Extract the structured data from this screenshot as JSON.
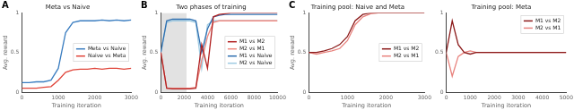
{
  "chart_data": [
    {
      "type": "line",
      "panel": "A",
      "title": "Meta vs Naive",
      "x_label": "Training iteration",
      "y_label": "Avg. reward",
      "x": [
        0,
        200,
        400,
        600,
        800,
        1000,
        1200,
        1400,
        1600,
        1800,
        2000,
        2200,
        2400,
        2600,
        2800,
        3000
      ],
      "series": [
        {
          "name": "Meta vs Naive",
          "color": "#3a7dc0",
          "values": [
            0.12,
            0.12,
            0.13,
            0.13,
            0.15,
            0.3,
            0.75,
            0.88,
            0.9,
            0.9,
            0.9,
            0.91,
            0.9,
            0.91,
            0.9,
            0.91
          ]
        },
        {
          "name": "Naive vs Meta",
          "color": "#e0453a",
          "values": [
            0.05,
            0.05,
            0.05,
            0.06,
            0.07,
            0.15,
            0.25,
            0.28,
            0.29,
            0.29,
            0.3,
            0.29,
            0.3,
            0.3,
            0.29,
            0.3
          ]
        }
      ],
      "xlim": [
        0,
        3000
      ],
      "xticks": [
        0,
        1000,
        2000,
        3000
      ],
      "ylim": [
        0,
        1
      ],
      "yticks": [
        0,
        0.5,
        1
      ],
      "grid": false,
      "legend": "center right"
    },
    {
      "type": "line",
      "panel": "B",
      "title": "Two phases of training",
      "x_label": "Training iteration",
      "y_label": "Avg. reward",
      "x": [
        0,
        500,
        1000,
        1500,
        2000,
        2500,
        3000,
        3500,
        4000,
        4500,
        5000,
        5500,
        6000,
        6500,
        7000,
        7500,
        8000,
        8500,
        9000,
        9500,
        10000
      ],
      "series": [
        {
          "name": "M1 vs M2",
          "color": "#b22222",
          "values": [
            0.5,
            0.05,
            0.04,
            0.04,
            0.04,
            0.04,
            0.05,
            0.6,
            0.3,
            0.95,
            0.98,
            0.99,
            1,
            1,
            1,
            1,
            1,
            1,
            1,
            1,
            1
          ]
        },
        {
          "name": "M2 vs M1",
          "color": "#f08a80",
          "values": [
            0.5,
            0.05,
            0.05,
            0.05,
            0.05,
            0.05,
            0.06,
            0.4,
            0.7,
            0.88,
            0.9,
            0.9,
            0.9,
            0.9,
            0.9,
            0.9,
            0.9,
            0.9,
            0.9,
            0.9,
            0.9
          ]
        },
        {
          "name": "M1 vs Naive",
          "color": "#2f6fb0",
          "values": [
            0.5,
            0.9,
            0.92,
            0.92,
            0.92,
            0.92,
            0.9,
            0.5,
            0.8,
            0.95,
            0.97,
            0.98,
            0.98,
            0.98,
            0.98,
            0.98,
            0.98,
            0.98,
            0.98,
            0.98,
            0.98
          ]
        },
        {
          "name": "M2 vs Naive",
          "color": "#9ecae1",
          "values": [
            0.5,
            0.88,
            0.9,
            0.9,
            0.9,
            0.9,
            0.88,
            0.3,
            0.85,
            0.9,
            0.9,
            0.9,
            0.9,
            0.9,
            0.9,
            0.9,
            0.9,
            0.9,
            0.9,
            0.9,
            0.9
          ]
        }
      ],
      "shaded_range": [
        0,
        2200
      ],
      "xlim": [
        0,
        10000
      ],
      "xticks": [
        0,
        2000,
        4000,
        6000,
        8000,
        10000
      ],
      "ylim": [
        0,
        1
      ],
      "yticks": [
        0,
        0.5,
        1
      ],
      "grid": false,
      "legend": "center right"
    },
    {
      "type": "line",
      "panel": "C",
      "title": "Training pool: Naive and Meta",
      "x_label": "Training iteration",
      "y_label": "Avg. reward",
      "x": [
        0,
        200,
        400,
        600,
        800,
        1000,
        1200,
        1400,
        1600,
        1800,
        2000,
        2200,
        2400,
        2600,
        2800,
        3000
      ],
      "series": [
        {
          "name": "M1 vs M2",
          "color": "#8b1a1a",
          "values": [
            0.5,
            0.5,
            0.52,
            0.55,
            0.6,
            0.7,
            0.9,
            0.98,
            1,
            1,
            1,
            1,
            1,
            1,
            1,
            1
          ]
        },
        {
          "name": "M2 vs M1",
          "color": "#e8837e",
          "values": [
            0.5,
            0.48,
            0.5,
            0.52,
            0.55,
            0.65,
            0.85,
            0.95,
            0.99,
            1,
            1,
            1,
            1,
            1,
            1,
            1
          ]
        }
      ],
      "xlim": [
        0,
        3000
      ],
      "xticks": [
        0,
        1000,
        2000,
        3000
      ],
      "ylim": [
        0,
        1
      ],
      "yticks": [
        0,
        0.5,
        1
      ],
      "grid": false,
      "legend": "center right"
    },
    {
      "type": "line",
      "title": "Training pool: Meta",
      "x_label": "Training iteration",
      "x": [
        0,
        250,
        500,
        750,
        1000,
        1250,
        1500,
        1750,
        2000,
        2250,
        2500,
        2750,
        3000,
        3250,
        3500,
        3750,
        4000,
        4250,
        4500,
        4750,
        5000
      ],
      "series": [
        {
          "name": "M1 vs M2",
          "color": "#8b1a1a",
          "values": [
            0.5,
            0.9,
            0.6,
            0.5,
            0.48,
            0.5,
            0.5,
            0.5,
            0.5,
            0.5,
            0.5,
            0.5,
            0.5,
            0.5,
            0.5,
            0.5,
            0.5,
            0.5,
            0.5,
            0.5,
            0.5
          ]
        },
        {
          "name": "M2 vs M1",
          "color": "#e8837e",
          "values": [
            0.5,
            0.2,
            0.45,
            0.5,
            0.52,
            0.5,
            0.5,
            0.5,
            0.5,
            0.5,
            0.5,
            0.5,
            0.5,
            0.5,
            0.5,
            0.5,
            0.5,
            0.5,
            0.5,
            0.5,
            0.5
          ]
        }
      ],
      "xlim": [
        0,
        5000
      ],
      "xticks": [
        0,
        1000,
        2000,
        3000,
        4000,
        5000
      ],
      "ylim": [
        0,
        1
      ],
      "yticks": [
        0,
        0.5,
        1
      ],
      "grid": false,
      "legend": "upper right"
    }
  ]
}
